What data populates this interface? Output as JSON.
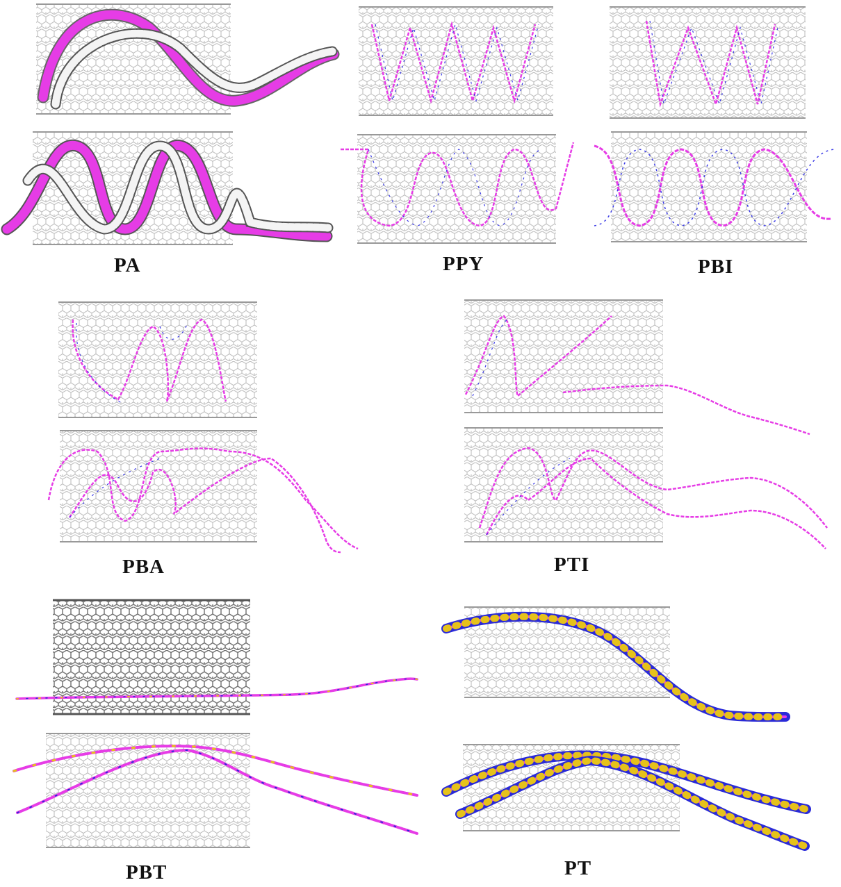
{
  "figure": {
    "panels": [
      {
        "id": "pa",
        "label": "PA",
        "polymer_style": "ball-helix"
      },
      {
        "id": "ppy",
        "label": "PPY",
        "polymer_style": "stick"
      },
      {
        "id": "pbi",
        "label": "PBI",
        "polymer_style": "stick"
      },
      {
        "id": "pba",
        "label": "PBA",
        "polymer_style": "stick"
      },
      {
        "id": "pti",
        "label": "PTI",
        "polymer_style": "stick"
      },
      {
        "id": "pbt",
        "label": "PBT",
        "polymer_style": "stick"
      },
      {
        "id": "pt",
        "label": "PT",
        "polymer_style": "ball-chain"
      }
    ],
    "colors": {
      "nanotube_light": "#bdbdbd",
      "nanotube_dark": "#6e6e6e",
      "polymer_magenta": "#e63ce6",
      "polymer_blue": "#2a2ad8",
      "polymer_yellow": "#e6c21a",
      "polymer_white": "#f4f4f4"
    }
  }
}
